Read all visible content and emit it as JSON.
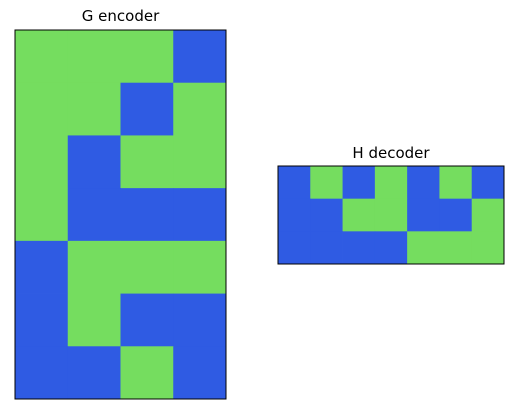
{
  "colors": {
    "one": "#2f5be3",
    "zero": "#75dd5f",
    "frame": "#000000"
  },
  "g_encoder": {
    "title": "G encoder",
    "matrix": [
      [
        0,
        0,
        0,
        1
      ],
      [
        0,
        0,
        1,
        0
      ],
      [
        0,
        1,
        0,
        0
      ],
      [
        0,
        1,
        1,
        1
      ],
      [
        1,
        0,
        0,
        0
      ],
      [
        1,
        0,
        1,
        1
      ],
      [
        1,
        1,
        0,
        1
      ]
    ]
  },
  "h_decoder": {
    "title": "H decoder",
    "matrix": [
      [
        1,
        0,
        1,
        0,
        1,
        0,
        1
      ],
      [
        1,
        1,
        0,
        0,
        1,
        1,
        0
      ],
      [
        1,
        1,
        1,
        1,
        0,
        0,
        0
      ]
    ]
  }
}
